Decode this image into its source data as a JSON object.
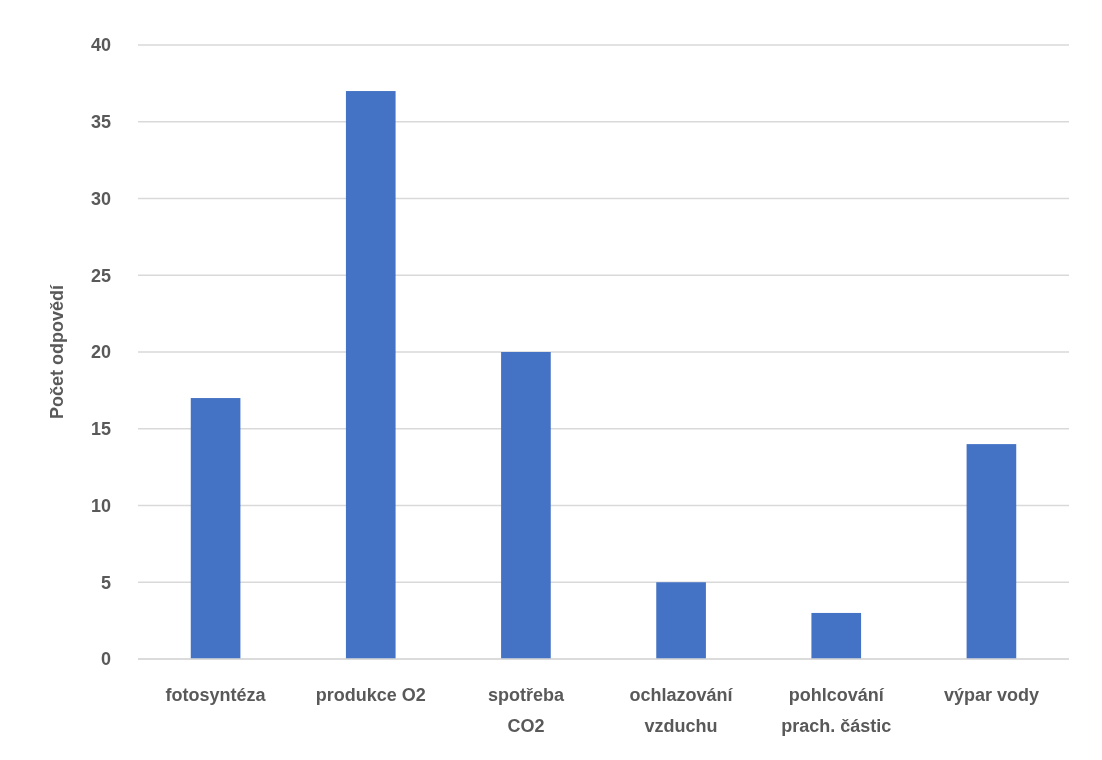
{
  "chart_data": {
    "type": "bar",
    "ylabel": "Počet odpovědí",
    "categories": [
      "fotosyntéza",
      "produkce O2",
      "spotřeba\nCO2",
      "ochlazování\nvzduchu",
      "pohlcování\nprach. částic",
      "výpar vody"
    ],
    "values": [
      17,
      37,
      20,
      5,
      3,
      14
    ],
    "color": "#4472c4",
    "ylim": [
      0,
      40
    ],
    "yticks": [
      0,
      5,
      10,
      15,
      20,
      25,
      30,
      35,
      40
    ],
    "grid": "y"
  }
}
